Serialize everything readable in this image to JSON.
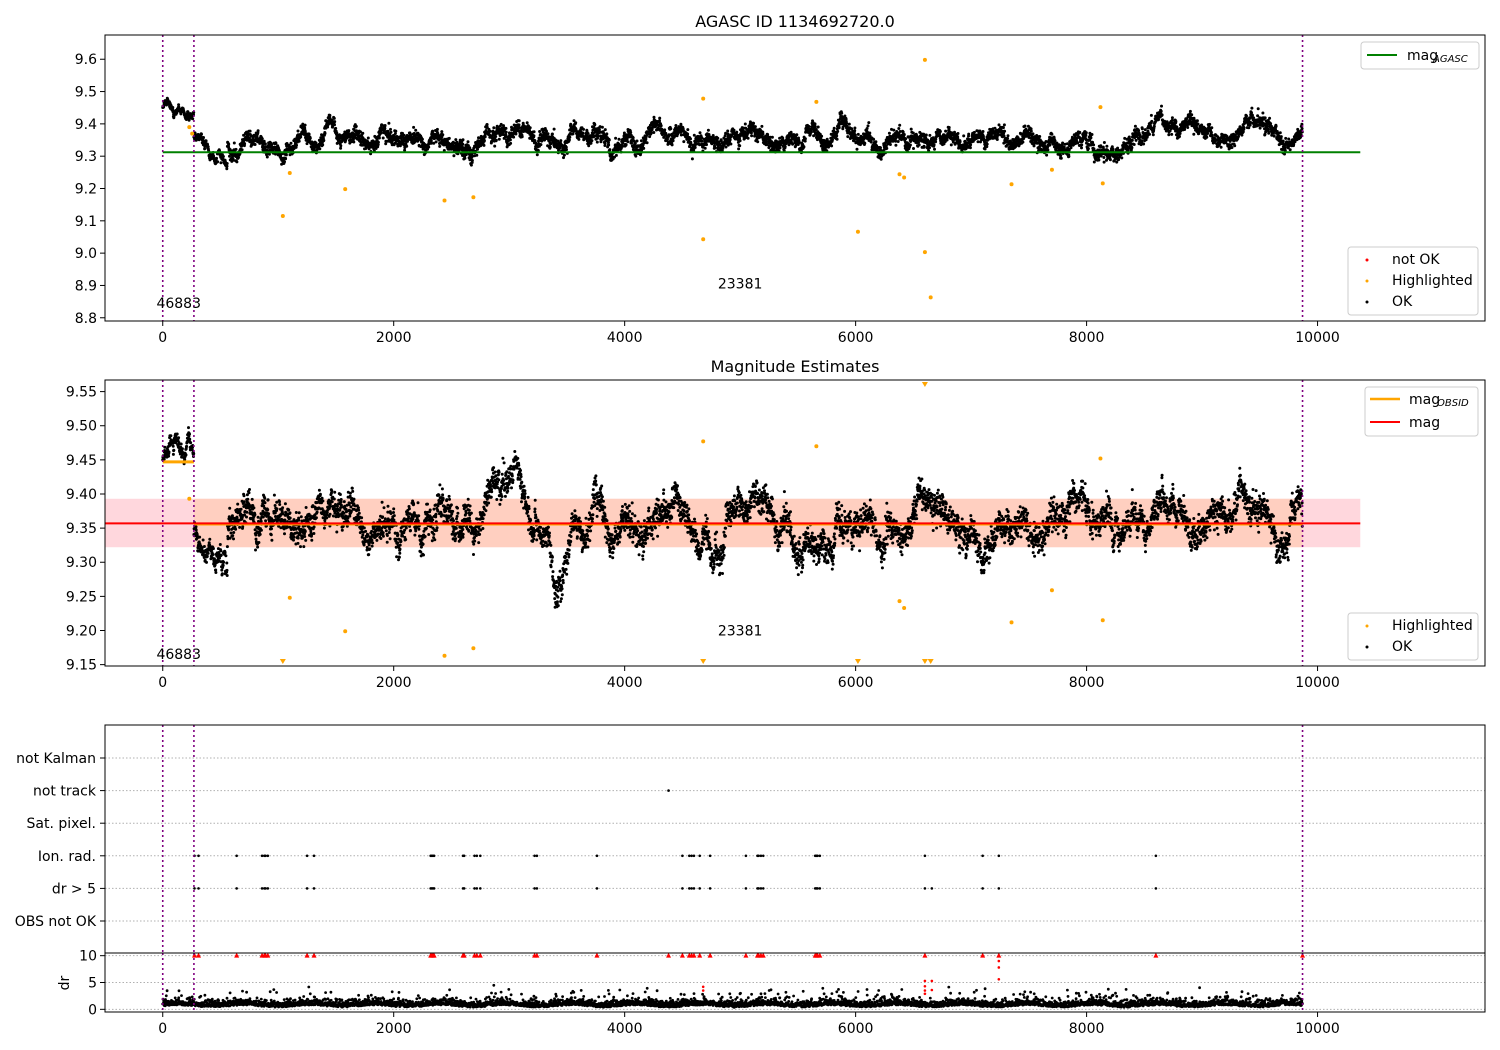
{
  "colors": {
    "ok": "#000000",
    "not_ok": "#ff0000",
    "highlighted": "#ffa500",
    "mag_agasc": "#008000",
    "mag_obsid": "#ffa500",
    "mag": "#ff0000",
    "band": "#ffb6c1",
    "obs_boundary": "#800080",
    "grid": "#b0b0b0"
  },
  "chart_data": [
    {
      "type": "scatter",
      "title": "AGASC ID 1134692720.0",
      "xlabel": "",
      "ylabel": "",
      "xlim": [
        -500,
        11450
      ],
      "ylim": [
        8.79,
        9.675
      ],
      "xticks": [
        0,
        2000,
        4000,
        6000,
        8000,
        10000
      ],
      "yticks": [
        8.8,
        8.9,
        9.0,
        9.1,
        9.2,
        9.3,
        9.4,
        9.5,
        9.6
      ],
      "obs_boundaries": [
        0,
        270,
        9870
      ],
      "obs_labels": [
        {
          "x": 0,
          "y": 8.83,
          "text": "46883"
        },
        {
          "x": 5000,
          "y": 8.89,
          "text": "23381"
        }
      ],
      "lines": [
        {
          "name": "mag",
          "subscript": "AGASC",
          "y": 9.312,
          "x": [
            0,
            10370
          ],
          "color": "#008000"
        }
      ],
      "series_legend": [
        "not OK",
        "Highlighted",
        "OK"
      ],
      "legend_lines_position": "top-right",
      "legend_points_position": "lower-right",
      "ok_segments": [
        {
          "x": [
            0,
            270
          ],
          "center": [
            9.455,
            9.44
          ],
          "spread": 0.03
        },
        {
          "x": [
            270,
            560
          ],
          "center": [
            9.36,
            9.31
          ],
          "spread": 0.04
        },
        {
          "x": [
            560,
            9870
          ],
          "center": [
            9.35,
            9.36
          ],
          "spread": 0.08
        }
      ],
      "highlighted_points": [
        [
          230,
          9.39
        ],
        [
          255,
          9.37
        ],
        [
          1040,
          9.115
        ],
        [
          1100,
          9.248
        ],
        [
          1580,
          9.198
        ],
        [
          2440,
          9.163
        ],
        [
          2690,
          9.173
        ],
        [
          4680,
          9.478
        ],
        [
          4680,
          9.043
        ],
        [
          5660,
          9.468
        ],
        [
          6020,
          9.066
        ],
        [
          6380,
          9.244
        ],
        [
          6420,
          9.234
        ],
        [
          6600,
          9.598
        ],
        [
          6600,
          9.003
        ],
        [
          6650,
          8.863
        ],
        [
          7350,
          9.213
        ],
        [
          7700,
          9.258
        ],
        [
          8120,
          9.452
        ],
        [
          8140,
          9.216
        ]
      ],
      "not_ok_points": []
    },
    {
      "type": "scatter",
      "title": "Magnitude Estimates",
      "xlabel": "",
      "ylabel": "",
      "xlim": [
        -500,
        11450
      ],
      "ylim": [
        9.148,
        9.567
      ],
      "xticks": [
        0,
        2000,
        4000,
        6000,
        8000,
        10000
      ],
      "yticks": [
        9.15,
        9.2,
        9.25,
        9.3,
        9.35,
        9.4,
        9.45,
        9.5,
        9.55
      ],
      "obs_boundaries": [
        0,
        270,
        9870
      ],
      "obs_labels": [
        {
          "x": 0,
          "y": 9.158,
          "text": "46883"
        },
        {
          "x": 5000,
          "y": 9.193,
          "text": "23381"
        }
      ],
      "lines": [
        {
          "name": "mag",
          "subscript": "OBSID",
          "segments": [
            {
              "x": [
                0,
                270
              ],
              "y": 9.447
            },
            {
              "x": [
                270,
                9870
              ],
              "y": 9.356
            }
          ],
          "color": "#ffa500"
        },
        {
          "name": "mag",
          "subscript": "",
          "y": 9.357,
          "x": [
            -500,
            10370
          ],
          "color": "#ff0000"
        }
      ],
      "bands": [
        {
          "x": [
            -500,
            10370
          ],
          "y": [
            9.322,
            9.393
          ],
          "color": "#ffb6c1"
        },
        {
          "x": [
            270,
            9870
          ],
          "y": [
            9.322,
            9.393
          ],
          "color": "#ffc9a8"
        }
      ],
      "series_legend": [
        "Highlighted",
        "OK"
      ],
      "legend_lines_position": "top-right",
      "legend_points_position": "lower-right",
      "ok_segments": [
        {
          "x": [
            0,
            270
          ],
          "center": [
            9.45,
            9.44
          ],
          "spread": 0.03
        },
        {
          "x": [
            270,
            560
          ],
          "center": [
            9.34,
            9.31
          ],
          "spread": 0.04
        },
        {
          "x": [
            560,
            9870
          ],
          "center": [
            9.35,
            9.36
          ],
          "spread": 0.08
        }
      ],
      "highlighted_points": [
        [
          230,
          9.393
        ],
        [
          1100,
          9.248
        ],
        [
          1580,
          9.199
        ],
        [
          2440,
          9.163
        ],
        [
          2690,
          9.174
        ],
        [
          4680,
          9.477
        ],
        [
          5660,
          9.47
        ],
        [
          6380,
          9.243
        ],
        [
          6420,
          9.233
        ],
        [
          7350,
          9.212
        ],
        [
          7700,
          9.259
        ],
        [
          8120,
          9.452
        ],
        [
          8140,
          9.215
        ]
      ],
      "highlighted_clipped": [
        1040,
        4680,
        6020,
        6600,
        6650
      ],
      "highlighted_clipped_top": [
        6600
      ]
    },
    {
      "type": "scatter",
      "title": "",
      "xlabel": "",
      "ylabel": "",
      "xlim": [
        -500,
        11450
      ],
      "xticks": [],
      "flag_rows": [
        "not Kalman",
        "not track",
        "Sat. pixel.",
        "Ion. rad.",
        "dr > 5",
        "OBS not OK"
      ],
      "obs_boundaries": [
        0,
        270,
        9870
      ],
      "flags": {
        "not Kalman": [],
        "not track": [
          4380
        ],
        "Sat. pixel.": [],
        "Ion. rad.": [
          275,
          310,
          640,
          860,
          880,
          890,
          910,
          1250,
          1310,
          2320,
          2330,
          2340,
          2350,
          2600,
          2610,
          2700,
          2720,
          2750,
          3220,
          3240,
          3760,
          4500,
          4560,
          4580,
          4600,
          4650,
          4740,
          5050,
          5150,
          5160,
          5180,
          5200,
          5650,
          5660,
          5670,
          5690,
          6600,
          7100,
          7240,
          8600
        ],
        "dr > 5": [
          275,
          310,
          640,
          860,
          880,
          890,
          910,
          1250,
          1310,
          2320,
          2330,
          2340,
          2350,
          2600,
          2610,
          2700,
          2720,
          2750,
          3220,
          3240,
          3760,
          4500,
          4560,
          4580,
          4600,
          4650,
          4740,
          5050,
          5150,
          5160,
          5180,
          5200,
          5650,
          5660,
          5670,
          5690,
          6600,
          6660,
          7100,
          7240,
          8600
        ],
        "OBS not OK": []
      }
    },
    {
      "type": "scatter",
      "title": "",
      "xlabel": "",
      "ylabel": "dr",
      "xlim": [
        -500,
        11450
      ],
      "ylim": [
        -0.5,
        10.5
      ],
      "xticks": [
        0,
        2000,
        4000,
        6000,
        8000,
        10000
      ],
      "yticks": [
        0,
        5,
        10
      ],
      "obs_boundaries": [
        0,
        270,
        9870
      ],
      "ok_band": {
        "x": [
          0,
          9870
        ],
        "center": 0.6,
        "spread": 1.2
      },
      "not_ok_at_top": [
        275,
        310,
        640,
        860,
        880,
        890,
        910,
        1250,
        1310,
        2320,
        2330,
        2340,
        2350,
        2600,
        2610,
        2700,
        2720,
        2750,
        3220,
        3240,
        3760,
        4380,
        4500,
        4560,
        4580,
        4600,
        4650,
        4740,
        5050,
        5150,
        5160,
        5180,
        5200,
        5650,
        5660,
        5670,
        5690,
        6600,
        7100,
        7240,
        8600,
        9870
      ],
      "not_ok_points": [
        [
          4680,
          4.2
        ],
        [
          4680,
          3.5
        ],
        [
          6600,
          5.3
        ],
        [
          6600,
          4.3
        ],
        [
          6600,
          3.5
        ],
        [
          6600,
          2.9
        ],
        [
          6660,
          5.3
        ],
        [
          6660,
          3.6
        ],
        [
          7240,
          9.0
        ],
        [
          7240,
          7.8
        ],
        [
          7240,
          5.6
        ]
      ]
    }
  ]
}
